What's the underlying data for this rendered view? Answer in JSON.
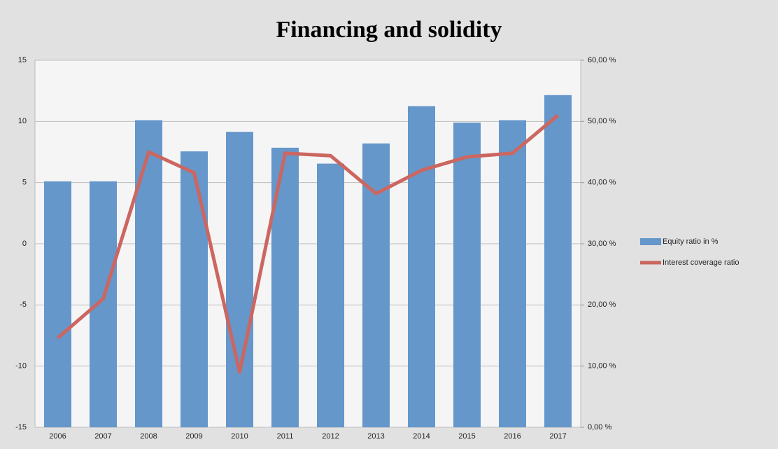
{
  "chart_data": {
    "type": "bar_line",
    "title": "Financing and solidity",
    "categories": [
      "2006",
      "2007",
      "2008",
      "2009",
      "2010",
      "2011",
      "2012",
      "2013",
      "2014",
      "2015",
      "2016",
      "2017"
    ],
    "series": [
      {
        "name": "Equity ratio in %",
        "type": "bar",
        "axis": "y2",
        "color": "#6597cb",
        "values": [
          40.2,
          40.2,
          50.2,
          45.1,
          48.3,
          45.7,
          43.1,
          46.4,
          52.5,
          49.8,
          50.2,
          54.3
        ]
      },
      {
        "name": "Interest coverage ratio",
        "type": "line",
        "color": "#cc6660",
        "values": [
          -7.7,
          -4.5,
          7.5,
          5.8,
          -10.5,
          7.4,
          7.2,
          4.1,
          6.0,
          7.1,
          7.4,
          10.5
        ]
      }
    ],
    "ylim": [
      -15,
      15
    ],
    "yticks": [
      -15,
      -10,
      -5,
      0,
      5,
      10,
      15
    ],
    "y2lim": [
      0,
      60
    ],
    "y2ticks": [
      {
        "value": 0,
        "label": "0,00 %"
      },
      {
        "value": 10,
        "label": "10,00 %"
      },
      {
        "value": 20,
        "label": "20,00 %"
      },
      {
        "value": 30,
        "label": "30,00 %"
      },
      {
        "value": 40,
        "label": "40,00 %"
      },
      {
        "value": 50,
        "label": "50,00 %"
      },
      {
        "value": 60,
        "label": "60,00 %"
      }
    ],
    "grid": true
  }
}
